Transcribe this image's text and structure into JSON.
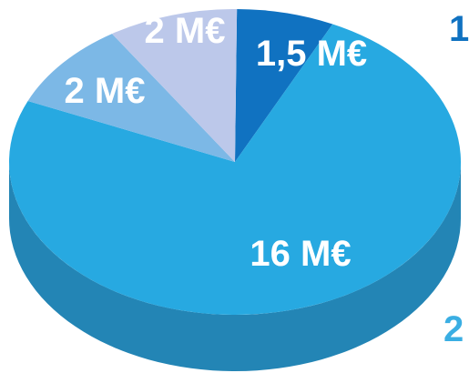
{
  "chart_data": {
    "type": "pie",
    "slices": [
      {
        "label": "1,5 M€",
        "value": 1.5,
        "color": "#1072c1",
        "label_color": "#ffffff"
      },
      {
        "label": "16 M€",
        "value": 16,
        "color": "#27a9e1",
        "label_color": "#ffffff"
      },
      {
        "label": "2 M€",
        "value": 2,
        "color": "#7cb8e6",
        "label_color": "#ffffff"
      },
      {
        "label": "2 M€",
        "value": 2,
        "color": "#bcc8ea",
        "label_color": "#2f8fd3"
      }
    ],
    "side_color": "#2385b5",
    "corner_labels": [
      {
        "text": "1",
        "color": "#1072c1"
      },
      {
        "text": "2",
        "color": "#3aaee3"
      }
    ]
  }
}
